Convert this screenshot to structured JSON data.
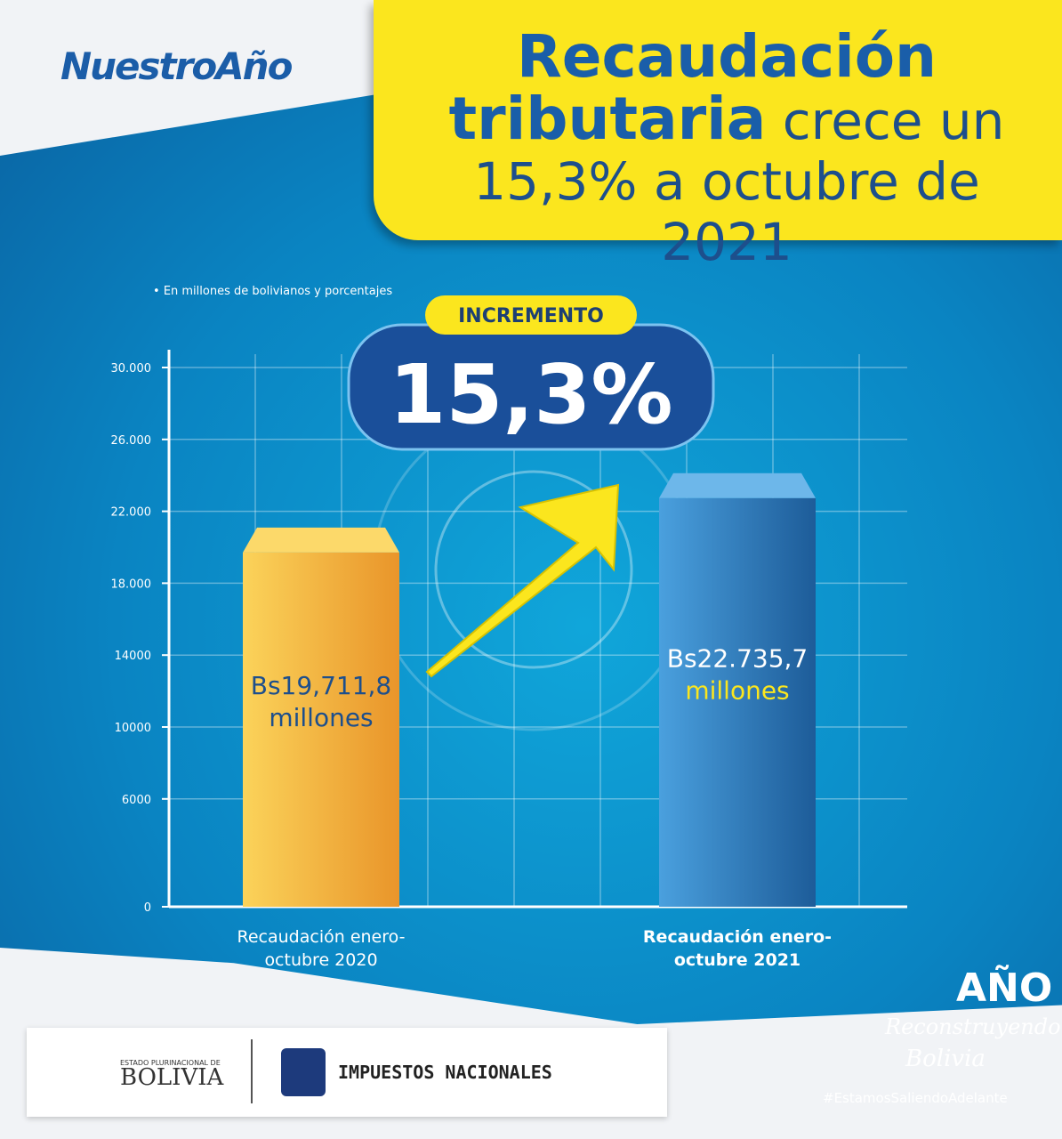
{
  "brand": "NuestroAño",
  "chart_data": {
    "type": "bar",
    "title_highlight": "Recaudación tributaria",
    "title_rest": "crece un 15,3% a octubre de 2021",
    "subtitle": "En millones de bolivianos y porcentajes",
    "annotation_label": "INCREMENTO",
    "annotation_value": "15,3%",
    "categories": [
      "Recaudación enero-octubre 2020",
      "Recaudación enero-octubre 2021"
    ],
    "values": [
      19711.8,
      22735.7
    ],
    "value_labels": [
      "Bs19,711,8",
      "Bs22.735,7"
    ],
    "value_unit": "millones",
    "colors": [
      "#f5b232",
      "#3a8ed4"
    ],
    "ylim": [
      0,
      30000
    ],
    "yticks": [
      0,
      6000,
      10000,
      14000,
      {
        "value": 18000,
        "label": "18.000"
      },
      {
        "value": 22000,
        "label": "22.000"
      },
      {
        "value": 26000,
        "label": "26.000"
      },
      {
        "value": 30000,
        "label": "30.000"
      }
    ],
    "grid": true
  },
  "footer": {
    "state_line": "ESTADO PLURINACIONAL DE",
    "state_name": "BOLIVIA",
    "agency": "IMPUESTOS NACIONALES",
    "campaign_year": "AÑO",
    "campaign_line1": "Reconstruyendo",
    "campaign_line2": "Bolivia",
    "hashtag": "#EstamosSaliendoAdelante"
  }
}
